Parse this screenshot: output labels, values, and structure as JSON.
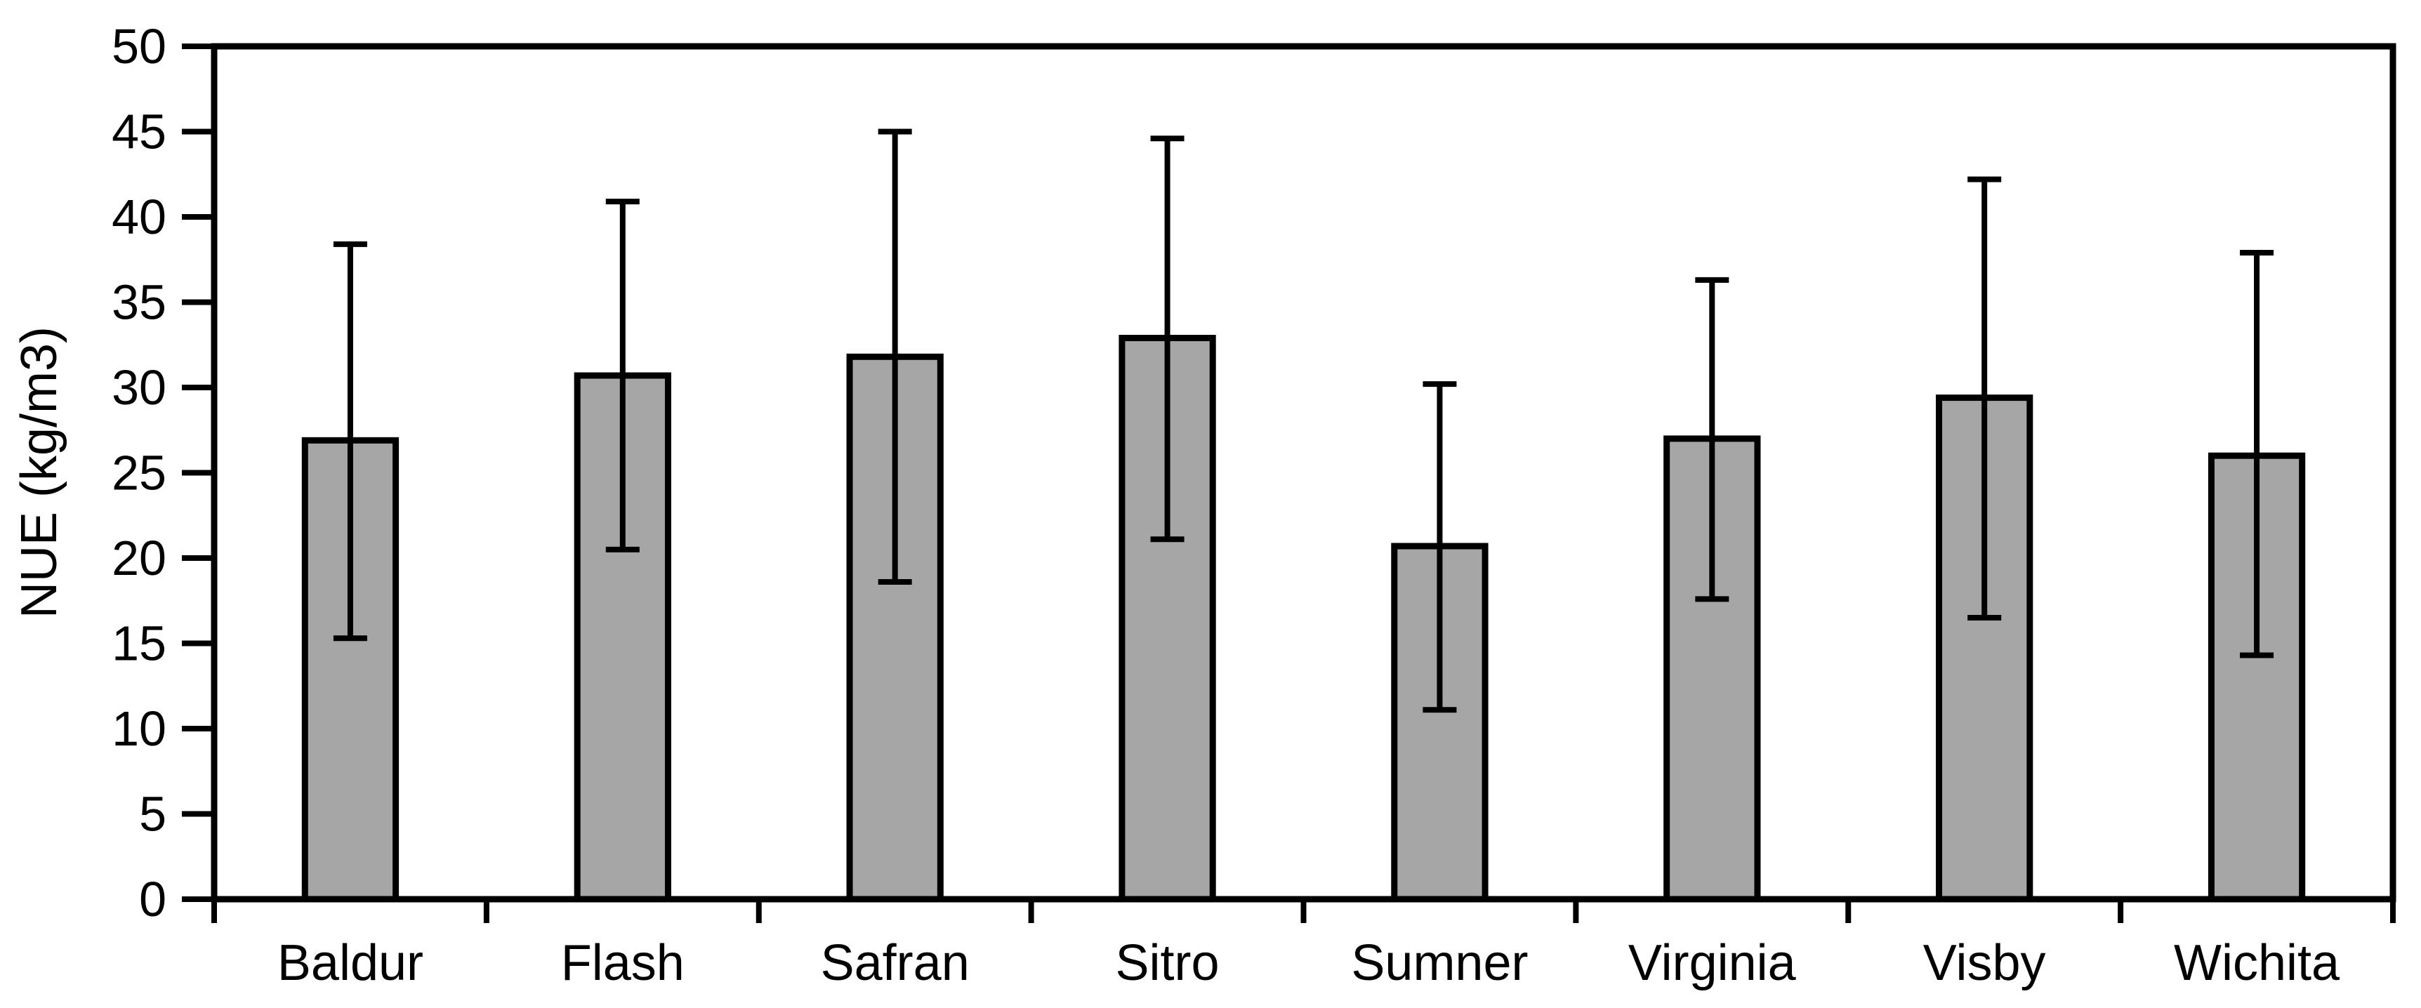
{
  "chart_data": {
    "type": "bar",
    "title": "",
    "ylabel": "NUE (kg/m3)",
    "xlabel": "",
    "categories": [
      "Baldur",
      "Flash",
      "Safran",
      "Sitro",
      "Sumner",
      "Virginia",
      "Visby",
      "Wichita"
    ],
    "values": [
      26.9,
      30.7,
      31.8,
      32.9,
      20.7,
      27.0,
      29.4,
      26.0
    ],
    "error_upper": [
      38.4,
      40.9,
      45.0,
      44.6,
      30.2,
      36.3,
      42.2,
      37.9
    ],
    "error_lower": [
      15.3,
      20.5,
      18.6,
      21.1,
      11.1,
      17.6,
      16.5,
      14.3
    ],
    "ylim": [
      0,
      50
    ],
    "yticks": [
      0,
      5,
      10,
      15,
      20,
      25,
      30,
      35,
      40,
      45,
      50
    ],
    "grid": false,
    "legend": false,
    "plot_border": true,
    "bar_fill": "#a6a6a6",
    "bar_stroke": "#000000",
    "error_color": "#000000",
    "axis_color": "#000000",
    "background": "#ffffff"
  }
}
